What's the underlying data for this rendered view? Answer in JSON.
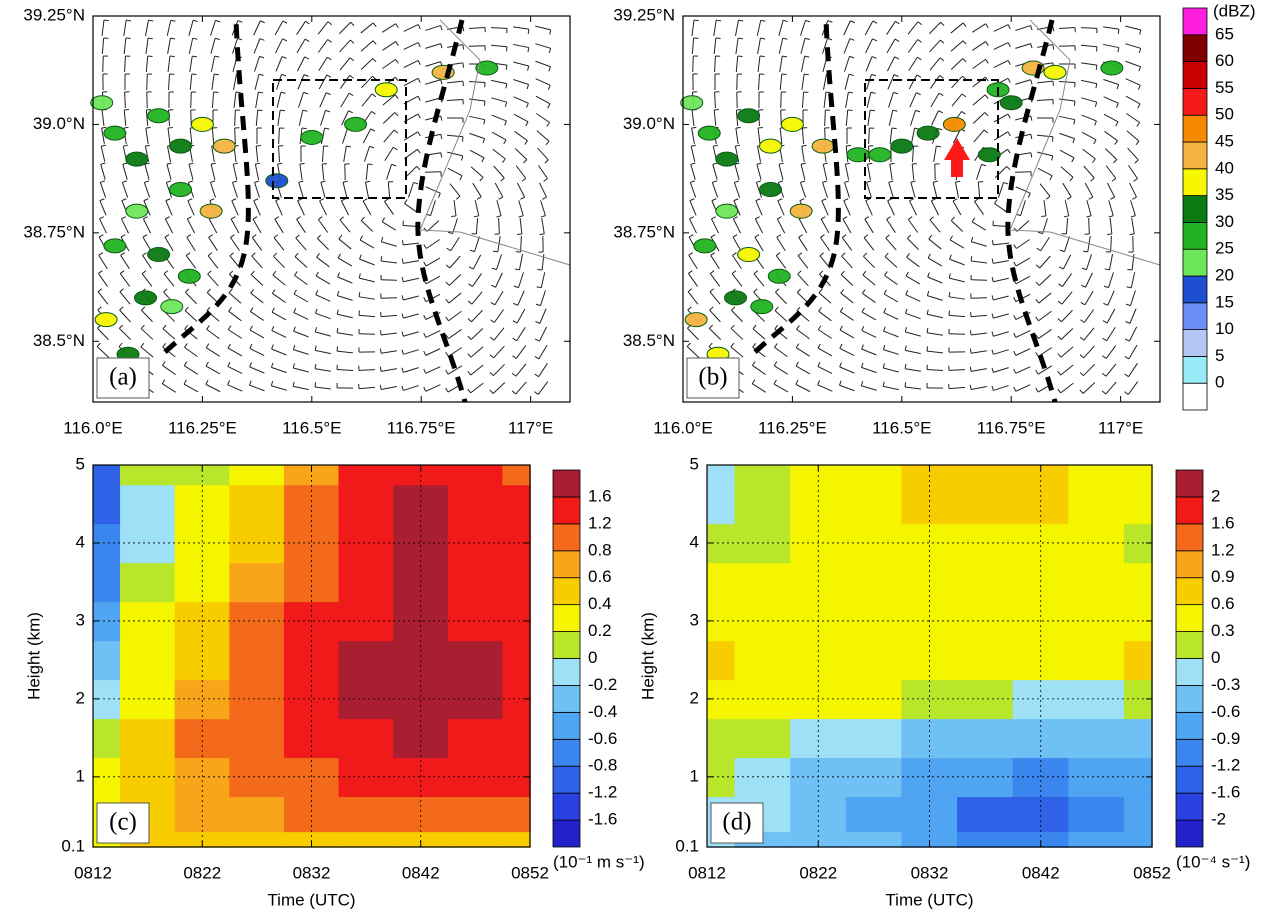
{
  "chart_data": [
    {
      "type": "map",
      "panel_label": "(a)",
      "xlim": [
        116.0,
        117.09
      ],
      "ylim": [
        38.36,
        39.25
      ],
      "xticks": [
        {
          "value": 116.0,
          "label": "116.0°E"
        },
        {
          "value": 116.25,
          "label": "116.25°E"
        },
        {
          "value": 116.5,
          "label": "116.5°E"
        },
        {
          "value": 116.75,
          "label": "116.75°E"
        },
        {
          "value": 117.0,
          "label": "117°E"
        }
      ],
      "yticks": [
        {
          "value": 38.5,
          "label": "38.5°N"
        },
        {
          "value": 38.75,
          "label": "38.75°N"
        },
        {
          "value": 39.0,
          "label": "39.0°N"
        },
        {
          "value": 39.25,
          "label": "39.25°N"
        }
      ],
      "cells": {
        "lon": [
          116.02,
          116.05,
          116.1,
          116.15,
          116.2,
          116.25,
          116.3,
          116.27,
          116.2,
          116.1,
          116.05,
          116.15,
          116.22,
          116.12,
          116.03,
          116.08,
          116.18,
          116.5,
          116.6,
          116.67,
          116.8,
          116.9,
          116.42
        ],
        "lat": [
          39.05,
          38.98,
          38.92,
          39.02,
          38.95,
          39.0,
          38.95,
          38.8,
          38.85,
          38.8,
          38.72,
          38.7,
          38.65,
          38.6,
          38.55,
          38.47,
          38.58,
          38.97,
          39.0,
          39.08,
          39.12,
          39.13,
          38.87
        ],
        "dbz": [
          20,
          25,
          30,
          25,
          30,
          35,
          40,
          40,
          25,
          20,
          25,
          30,
          25,
          30,
          35,
          30,
          20,
          25,
          25,
          35,
          40,
          25,
          15
        ]
      }
    },
    {
      "type": "map",
      "panel_label": "(b)",
      "xlim": [
        116.0,
        117.09
      ],
      "ylim": [
        38.36,
        39.25
      ],
      "xticks": [
        {
          "value": 116.0,
          "label": "116.0°E"
        },
        {
          "value": 116.25,
          "label": "116.25°E"
        },
        {
          "value": 116.5,
          "label": "116.5°E"
        },
        {
          "value": 116.75,
          "label": "116.75°E"
        },
        {
          "value": 117.0,
          "label": "117°E"
        }
      ],
      "yticks": [
        {
          "value": 38.5,
          "label": "38.5°N"
        },
        {
          "value": 38.75,
          "label": "38.75°N"
        },
        {
          "value": 39.0,
          "label": "39.0°N"
        },
        {
          "value": 39.25,
          "label": "39.25°N"
        }
      ],
      "cells": {
        "lon": [
          116.02,
          116.06,
          116.1,
          116.15,
          116.2,
          116.25,
          116.32,
          116.27,
          116.2,
          116.1,
          116.05,
          116.15,
          116.22,
          116.12,
          116.03,
          116.08,
          116.18,
          116.62,
          116.56,
          116.5,
          116.45,
          116.7,
          116.75,
          116.8,
          116.85,
          116.98,
          116.72,
          116.4
        ],
        "lat": [
          39.05,
          38.98,
          38.92,
          39.02,
          38.95,
          39.0,
          38.95,
          38.8,
          38.85,
          38.8,
          38.72,
          38.7,
          38.65,
          38.6,
          38.55,
          38.47,
          38.58,
          39.0,
          38.98,
          38.95,
          38.93,
          38.93,
          39.05,
          39.13,
          39.12,
          39.13,
          39.08,
          38.93
        ],
        "dbz": [
          20,
          25,
          30,
          30,
          35,
          35,
          40,
          40,
          30,
          20,
          25,
          35,
          25,
          30,
          40,
          35,
          25,
          45,
          30,
          30,
          25,
          30,
          30,
          40,
          35,
          25,
          25,
          25
        ]
      },
      "levels": [
        0,
        5,
        10,
        15,
        20,
        25,
        30,
        35,
        40,
        45,
        50,
        55,
        60,
        65
      ],
      "colors": [
        "#ffffff",
        "#99eaf7",
        "#b3c7f7",
        "#6b8ff5",
        "#1e4fd1",
        "#6ee65a",
        "#22b322",
        "#0a7a12",
        "#f7f700",
        "#f5b340",
        "#f58a00",
        "#f51a1a",
        "#c80000",
        "#800000",
        "#ff1ee0"
      ],
      "colorbar_label": "(dBZ)"
    },
    {
      "type": "contour",
      "panel_label": "(c)",
      "xlabel": "Time (UTC)",
      "ylabel": "Height (km)",
      "xlim": [
        812,
        852
      ],
      "ylim": [
        0.1,
        5
      ],
      "xticks": [
        {
          "value": 812,
          "label": "0812"
        },
        {
          "value": 822,
          "label": "0822"
        },
        {
          "value": 832,
          "label": "0832"
        },
        {
          "value": 842,
          "label": "0842"
        },
        {
          "value": 852,
          "label": "0852"
        }
      ],
      "yticks": [
        0.1,
        1,
        2,
        3,
        4,
        5
      ],
      "grid": true,
      "x": [
        812,
        817,
        822,
        827,
        832,
        837,
        842,
        847,
        852
      ],
      "y": [
        0.1,
        0.5,
        1,
        1.5,
        2,
        2.5,
        3,
        3.5,
        4,
        4.5,
        5
      ],
      "z": [
        [
          0.3,
          0.4,
          0.4,
          0.4,
          0.4,
          0.4,
          0.4,
          0.4,
          0.4
        ],
        [
          0.3,
          0.5,
          0.6,
          0.7,
          0.8,
          0.8,
          0.8,
          0.8,
          0.8
        ],
        [
          0.2,
          0.4,
          0.7,
          0.9,
          1.1,
          1.3,
          1.3,
          1.3,
          1.3
        ],
        [
          0.1,
          0.4,
          0.8,
          1.0,
          1.3,
          1.5,
          1.7,
          1.5,
          1.3
        ],
        [
          -0.1,
          0.3,
          0.7,
          1.0,
          1.3,
          1.7,
          1.8,
          1.7,
          1.3
        ],
        [
          -0.3,
          0.2,
          0.5,
          0.9,
          1.3,
          1.7,
          1.8,
          1.7,
          1.3
        ],
        [
          -0.5,
          0.2,
          0.4,
          0.8,
          1.2,
          1.5,
          1.8,
          1.5,
          1.3
        ],
        [
          -0.7,
          0.0,
          0.3,
          0.6,
          1.1,
          1.4,
          1.8,
          1.4,
          1.3
        ],
        [
          -0.8,
          -0.1,
          0.2,
          0.5,
          1.0,
          1.3,
          1.7,
          1.4,
          1.3
        ],
        [
          -0.9,
          -0.1,
          0.2,
          0.4,
          0.8,
          1.3,
          1.6,
          1.4,
          1.2
        ],
        [
          -0.9,
          0.0,
          0.1,
          0.3,
          0.7,
          1.3,
          1.4,
          1.3,
          1.1
        ]
      ],
      "levels": [
        -1.6,
        -1.2,
        -0.8,
        -0.6,
        -0.4,
        -0.2,
        0,
        0.2,
        0.4,
        0.6,
        0.8,
        1.2,
        1.6
      ],
      "colors": [
        "#2222c8",
        "#2a40e0",
        "#2f62e6",
        "#3a86ee",
        "#4fa5f2",
        "#6ec0f5",
        "#9ee0f5",
        "#b8e62a",
        "#f5f500",
        "#f8cd00",
        "#f9a51a",
        "#f36b1a",
        "#f01a1a",
        "#aa1e32"
      ],
      "colorbar_label": "(10⁻¹ m s⁻¹)"
    },
    {
      "type": "contour",
      "panel_label": "(d)",
      "xlabel": "Time (UTC)",
      "ylabel": "Height (km)",
      "xlim": [
        812,
        852
      ],
      "ylim": [
        0.1,
        5
      ],
      "xticks": [
        {
          "value": 812,
          "label": "0812"
        },
        {
          "value": 822,
          "label": "0822"
        },
        {
          "value": 832,
          "label": "0832"
        },
        {
          "value": 842,
          "label": "0842"
        },
        {
          "value": 852,
          "label": "0852"
        }
      ],
      "yticks": [
        0.1,
        1,
        2,
        3,
        4,
        5
      ],
      "grid": true,
      "x": [
        812,
        817,
        822,
        827,
        832,
        837,
        842,
        847,
        852
      ],
      "y": [
        0.1,
        0.5,
        1,
        1.5,
        2,
        2.5,
        3,
        3.5,
        4,
        4.5,
        5
      ],
      "z": [
        [
          -0.2,
          -0.4,
          -0.5,
          -0.6,
          -0.8,
          -1.0,
          -1.0,
          -0.9,
          -0.8
        ],
        [
          -0.1,
          -0.3,
          -0.5,
          -0.7,
          -0.9,
          -1.3,
          -1.3,
          -1.0,
          -0.9
        ],
        [
          0.1,
          -0.1,
          -0.4,
          -0.5,
          -0.7,
          -0.9,
          -1.0,
          -0.8,
          -0.7
        ],
        [
          0.2,
          0.1,
          -0.1,
          -0.3,
          -0.4,
          -0.5,
          -0.5,
          -0.5,
          -0.4
        ],
        [
          0.4,
          0.3,
          0.3,
          0.3,
          0.2,
          0.0,
          -0.1,
          -0.1,
          0.0
        ],
        [
          0.6,
          0.4,
          0.4,
          0.4,
          0.4,
          0.4,
          0.3,
          0.3,
          0.6
        ],
        [
          0.4,
          0.4,
          0.4,
          0.4,
          0.4,
          0.4,
          0.4,
          0.4,
          0.4
        ],
        [
          0.3,
          0.3,
          0.3,
          0.4,
          0.5,
          0.4,
          0.4,
          0.4,
          0.3
        ],
        [
          0.1,
          0.2,
          0.3,
          0.4,
          0.5,
          0.5,
          0.4,
          0.4,
          0.2
        ],
        [
          -0.1,
          0.1,
          0.3,
          0.5,
          0.6,
          0.7,
          0.6,
          0.5,
          0.4
        ],
        [
          -0.2,
          0.2,
          0.3,
          0.4,
          0.7,
          0.8,
          0.7,
          0.5,
          0.4
        ]
      ],
      "levels": [
        -2,
        -1.6,
        -1.2,
        -0.9,
        -0.6,
        -0.3,
        0,
        0.3,
        0.6,
        0.9,
        1.2,
        1.6,
        2
      ],
      "colors": [
        "#2222c8",
        "#2a40e0",
        "#2f62e6",
        "#3a86ee",
        "#4fa5f2",
        "#6ec0f5",
        "#9ee0f5",
        "#b8e62a",
        "#f5f500",
        "#f8cd00",
        "#f9a51a",
        "#f36b1a",
        "#f01a1a",
        "#aa1e32"
      ],
      "colorbar_label": "(10⁻⁴ s⁻¹)"
    }
  ]
}
